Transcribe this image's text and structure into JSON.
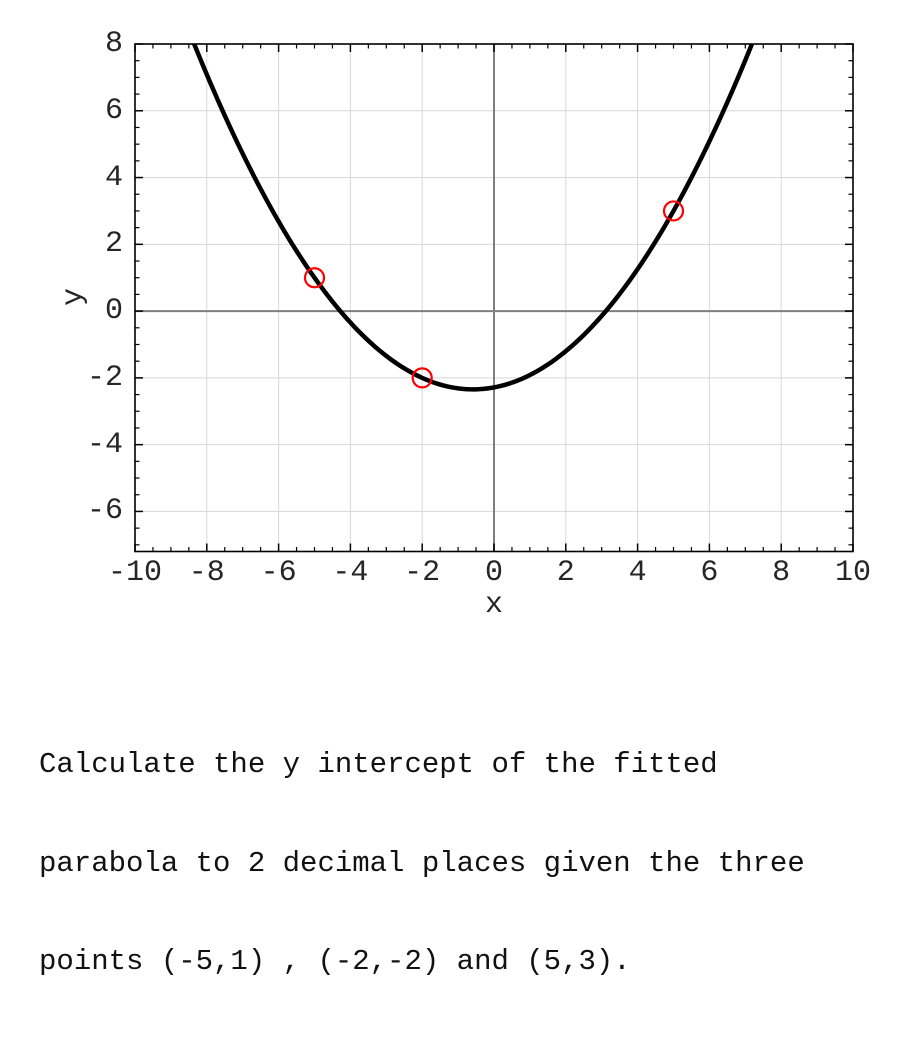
{
  "chart_data": {
    "type": "scatter",
    "title": "",
    "xlabel": "x",
    "ylabel": "y",
    "xlim": [
      -10,
      10
    ],
    "ylim": [
      -7.2,
      8
    ],
    "x_tick_values": [
      -10,
      -8,
      -6,
      -4,
      -2,
      0,
      2,
      4,
      6,
      8,
      10
    ],
    "x_tick_labels": [
      "-10",
      "-8",
      "-6",
      "-4",
      "-2",
      "0",
      "2",
      "4",
      "6",
      "8",
      "10"
    ],
    "y_tick_values": [
      -6,
      -4,
      -2,
      0,
      2,
      4,
      6,
      8
    ],
    "y_tick_labels": [
      "-6",
      "-4",
      "-2",
      "0",
      "2",
      "4",
      "6",
      "8"
    ],
    "minor_tick_step": 0.5,
    "grid": true,
    "zero_axis_lines": true,
    "points": [
      [
        -5,
        1
      ],
      [
        -2,
        -2
      ],
      [
        5,
        3
      ]
    ],
    "fit_curve": {
      "type": "quadratic",
      "a": 0.17142857,
      "b": 0.2,
      "c": -2.28571429
    }
  },
  "question": {
    "lines": [
      "Calculate the y intercept of the fitted",
      "parabola to 2 decimal places given the three",
      "points (-5,1) , (-2,-2) and (5,3)."
    ]
  },
  "colors": {
    "curve": "#000000",
    "marker": "#ff0000",
    "grid": "#d8d8d8",
    "zero_line": "#7f7f7f",
    "spine": "#000000",
    "tick_label": "#262626",
    "question_text": "#111111"
  }
}
